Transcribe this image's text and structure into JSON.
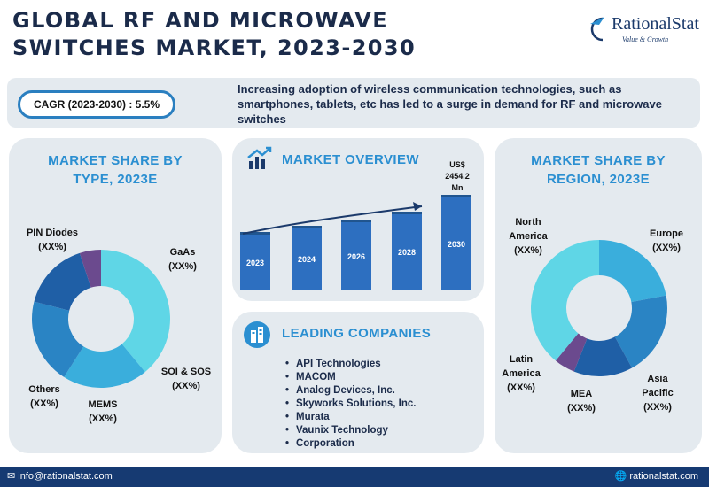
{
  "header": {
    "title_line1": "GLOBAL RF AND MICROWAVE",
    "title_line2": "SWITCHES MARKET, 2023-2030"
  },
  "logo": {
    "name": "RationalStat",
    "tagline": "Value & Growth"
  },
  "summary": {
    "cagr": "CAGR (2023-2030) : 5.5%",
    "note": "Increasing adoption of wireless communication technologies, such as smartphones, tablets, etc has led to a surge in demand for RF and microwave switches"
  },
  "panels": {
    "type_title_1": "MARKET SHARE BY",
    "type_title_2": "TYPE, 2023E",
    "overview_title": "MARKET OVERVIEW",
    "region_title_1": "MARKET SHARE BY",
    "region_title_2": "REGION, 2023E",
    "companies_title": "LEADING COMPANIES"
  },
  "companies": [
    "API Technologies",
    "MACOM",
    "Analog Devices, Inc.",
    "Skyworks Solutions, Inc.",
    "Murata",
    "Vaunix Technology",
    "Corporation"
  ],
  "footer": {
    "email": "info@rationalstat.com",
    "site": "rationalstat.com"
  },
  "colors": {
    "navy": "#1b2b4a",
    "accent_blue": "#2b8fd1",
    "bar_blue": "#2d6fc0",
    "footer_bg": "#163a72"
  },
  "icons": [
    "growth-chart-icon",
    "buildings-icon",
    "email-icon",
    "globe-icon"
  ],
  "chart_data": [
    {
      "type": "pie",
      "title": "MARKET SHARE BY TYPE, 2023E",
      "slices": [
        {
          "name": "PIN Diodes",
          "label": "(XX%)",
          "value": 39,
          "color": "#5fd6e6"
        },
        {
          "name": "GaAs",
          "label": "(XX%)",
          "value": 20,
          "color": "#3aaedc"
        },
        {
          "name": "SOI & SOS",
          "label": "(XX%)",
          "value": 20,
          "color": "#2a84c4"
        },
        {
          "name": "MEMS",
          "label": "(XX%)",
          "value": 16,
          "color": "#1f5fa6"
        },
        {
          "name": "Others",
          "label": "(XX%)",
          "value": 5,
          "color": "#6b4a8e"
        }
      ]
    },
    {
      "type": "bar",
      "title": "MARKET OVERVIEW",
      "categories": [
        "2023",
        "2024",
        "2026",
        "2028",
        "2030"
      ],
      "values": [
        null,
        null,
        null,
        null,
        2454.2
      ],
      "relative_heights": [
        0.61,
        0.68,
        0.74,
        0.82,
        1.0
      ],
      "value_label": "US$ 2454.2 Mn"
    },
    {
      "type": "pie",
      "title": "MARKET SHARE BY REGION, 2023E",
      "slices": [
        {
          "name": "Europe",
          "label": "(XX%)",
          "value": 22,
          "color": "#3aaedc"
        },
        {
          "name": "Asia Pacific",
          "label": "(XX%)",
          "value": 20,
          "color": "#2a84c4"
        },
        {
          "name": "MEA",
          "label": "(XX%)",
          "value": 14,
          "color": "#1f5fa6"
        },
        {
          "name": "Latin America",
          "label": "(XX%)",
          "value": 5,
          "color": "#6b4a8e"
        },
        {
          "name": "North America",
          "label": "(XX%)",
          "value": 39,
          "color": "#5fd6e6"
        }
      ]
    }
  ]
}
